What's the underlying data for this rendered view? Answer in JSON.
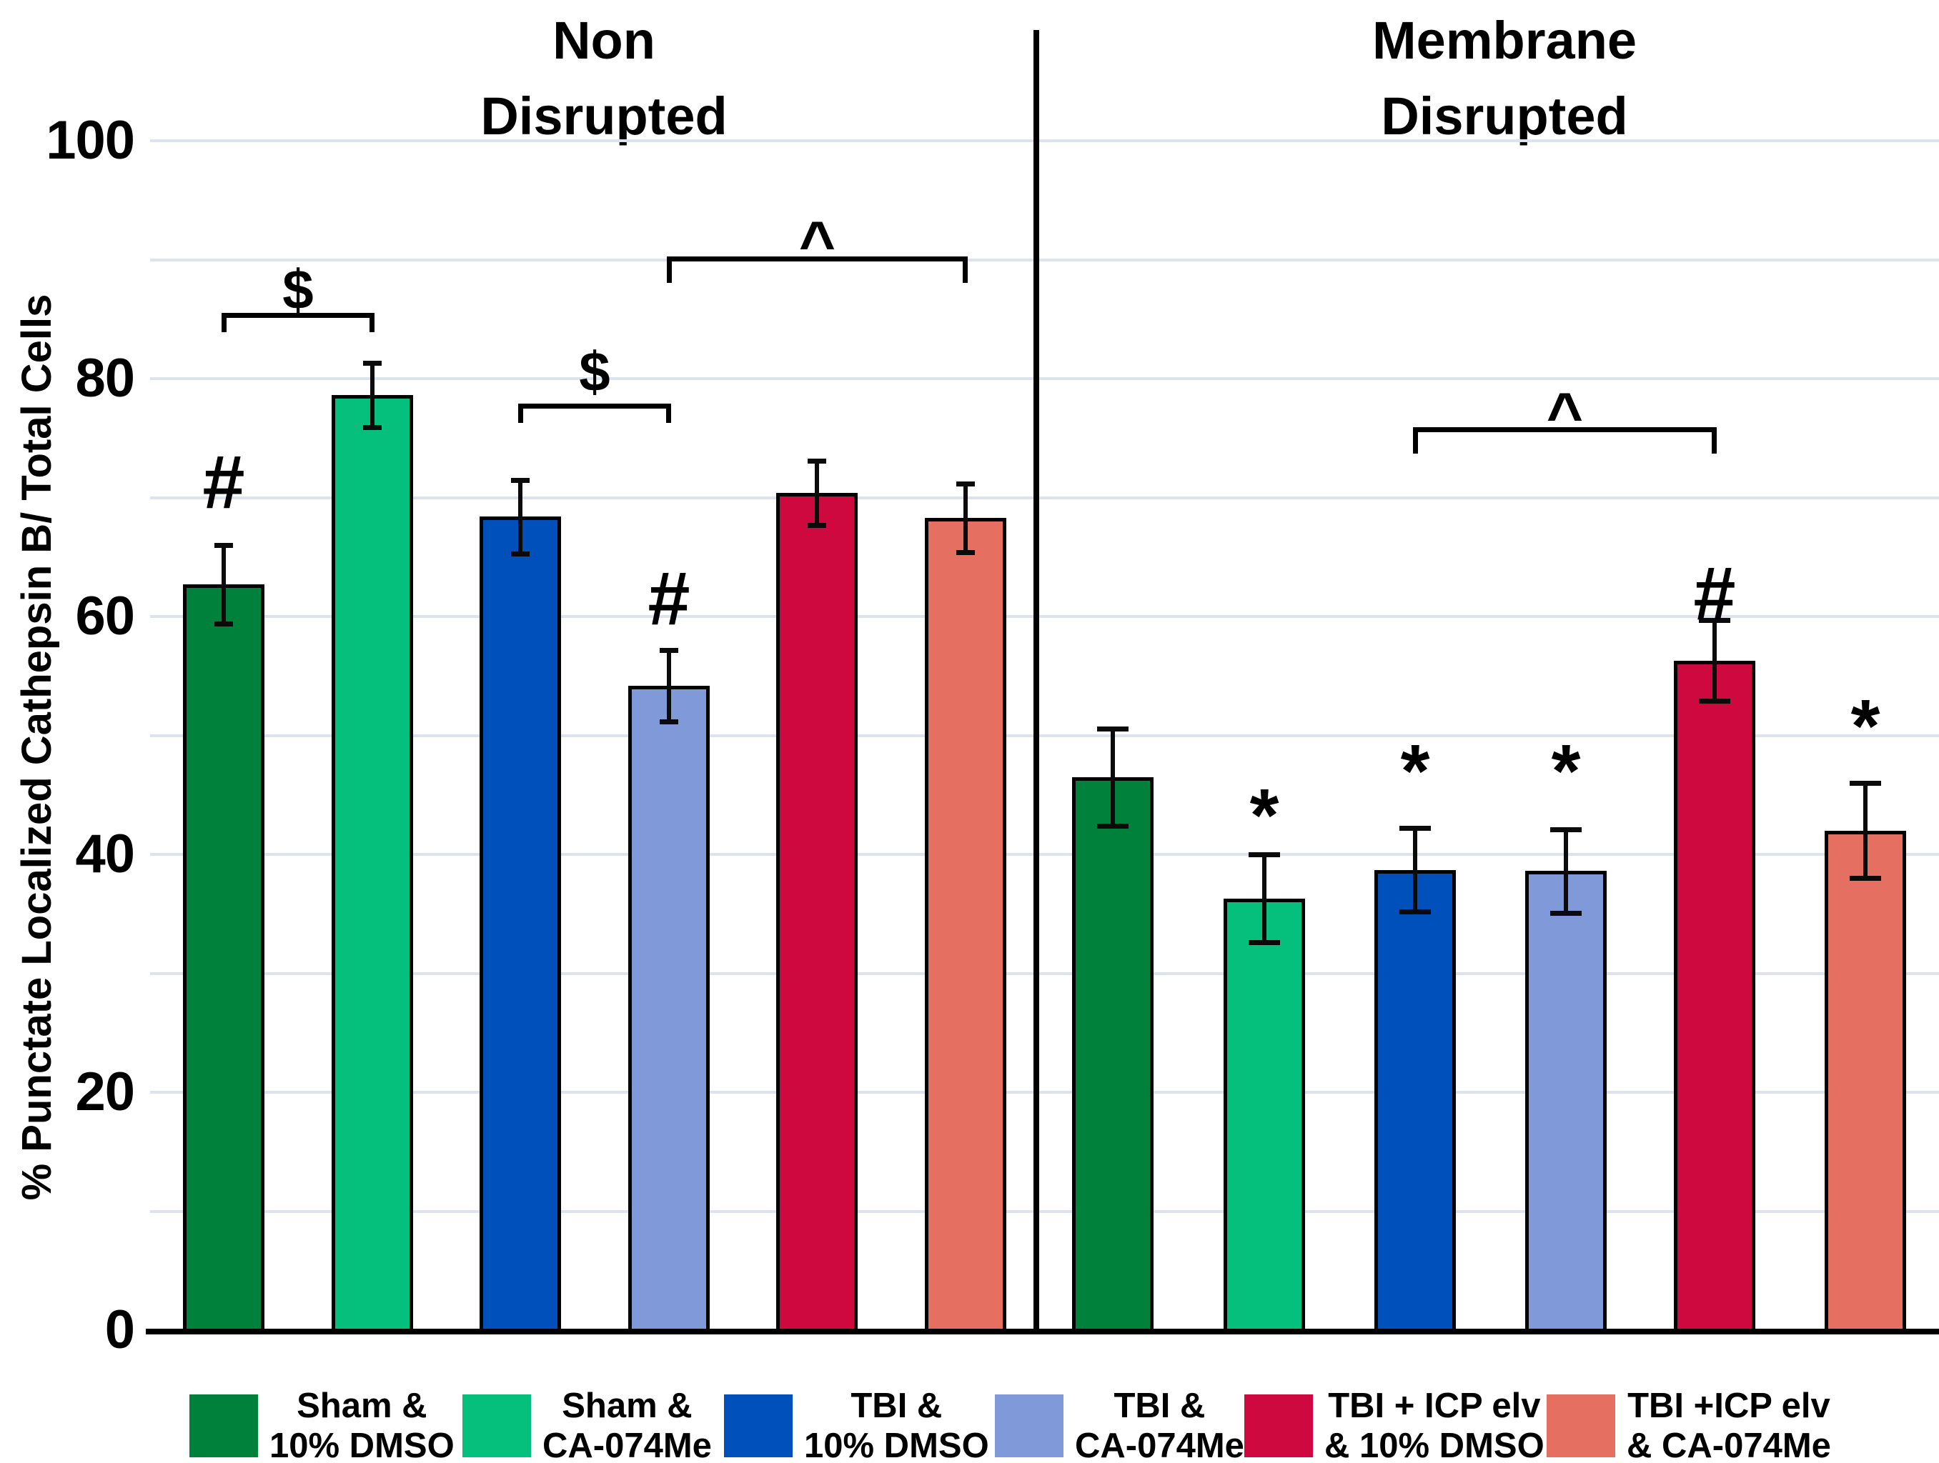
{
  "chart_data": {
    "type": "bar",
    "title": "",
    "ylabel": "% Punctate Localized Cathepsin B/ Total Cells",
    "xlabel": "",
    "ylim": [
      0,
      100
    ],
    "gridline_step": 10,
    "grid_on": true,
    "grid_color": "#DCE3EC",
    "y_ticks": [
      100,
      80,
      60,
      40,
      20,
      0
    ],
    "panels": [
      {
        "title_lines": [
          "Non",
          "Disrupted"
        ]
      },
      {
        "title_lines": [
          "Membrane",
          "Disrupted"
        ]
      }
    ],
    "legend_position": "bottom",
    "series": [
      {
        "name": "Sham & 10% DMSO",
        "legend_lines": [
          "Sham &",
          "10% DMSO"
        ],
        "color": "#00813B"
      },
      {
        "name": "Sham & CA-074Me",
        "legend_lines": [
          "Sham &",
          "CA-074Me"
        ],
        "color": "#05C07D"
      },
      {
        "name": "TBI & 10% DMSO",
        "legend_lines": [
          "TBI &",
          "10% DMSO"
        ],
        "color": "#0050BC"
      },
      {
        "name": "TBI & CA-074Me",
        "legend_lines": [
          "TBI &",
          "CA-074Me"
        ],
        "color": "#8099D8"
      },
      {
        "name": "TBI + ICP elv & 10% DMSO",
        "legend_lines": [
          "TBI + ICP elv",
          "& 10% DMSO"
        ],
        "color": "#CE0940"
      },
      {
        "name": "TBI +ICP elv & CA-074Me",
        "legend_lines": [
          "TBI +ICP elv",
          "& CA-074Me"
        ],
        "color": "#E56F60"
      }
    ],
    "bars": [
      {
        "panel": "Non Disrupted",
        "series": 0,
        "value": 62.7,
        "err": 3.3,
        "marker": "#",
        "marker_y": 71.6
      },
      {
        "panel": "Non Disrupted",
        "series": 1,
        "value": 78.6,
        "err": 2.7,
        "marker": null,
        "marker_y": null
      },
      {
        "panel": "Non Disrupted",
        "series": 2,
        "value": 68.4,
        "err": 3.1,
        "marker": null,
        "marker_y": null
      },
      {
        "panel": "Non Disrupted",
        "series": 3,
        "value": 54.2,
        "err": 3.0,
        "marker": "#",
        "marker_y": 61.8
      },
      {
        "panel": "Non Disrupted",
        "series": 4,
        "value": 70.4,
        "err": 2.7,
        "marker": null,
        "marker_y": null
      },
      {
        "panel": "Non Disrupted",
        "series": 5,
        "value": 68.3,
        "err": 2.9,
        "marker": null,
        "marker_y": null
      },
      {
        "panel": "Membrane Disrupted",
        "series": 0,
        "value": 46.5,
        "err": 4.1,
        "marker": null,
        "marker_y": null
      },
      {
        "panel": "Membrane Disrupted",
        "series": 1,
        "value": 36.3,
        "err": 3.7,
        "marker": "*",
        "marker_y": 44.8
      },
      {
        "panel": "Membrane Disrupted",
        "series": 2,
        "value": 38.7,
        "err": 3.5,
        "marker": "*",
        "marker_y": 48.5
      },
      {
        "panel": "Membrane Disrupted",
        "series": 3,
        "value": 38.6,
        "err": 3.5,
        "marker": "*",
        "marker_y": 48.5
      },
      {
        "panel": "Membrane Disrupted",
        "series": 4,
        "value": 56.3,
        "err": 3.4,
        "marker": "#",
        "marker_y": 62.2
      },
      {
        "panel": "Membrane Disrupted",
        "series": 5,
        "value": 42.0,
        "err": 4.0,
        "marker": "*",
        "marker_y": 52.3
      }
    ],
    "significance_brackets": [
      {
        "from_bar": 0,
        "to_bar": 1,
        "symbol": "$",
        "y": 85.5,
        "symbol_y": 87.8
      },
      {
        "from_bar": 2,
        "to_bar": 3,
        "symbol": "$",
        "y": 77.9,
        "symbol_y": 80.9
      },
      {
        "from_bar": 3,
        "to_bar": 5,
        "symbol": "^",
        "y": 90.3,
        "symbol_y": 92.5
      },
      {
        "from_bar": 8,
        "to_bar": 10,
        "symbol": "^",
        "y": 75.9,
        "symbol_y": 78.1
      }
    ]
  }
}
